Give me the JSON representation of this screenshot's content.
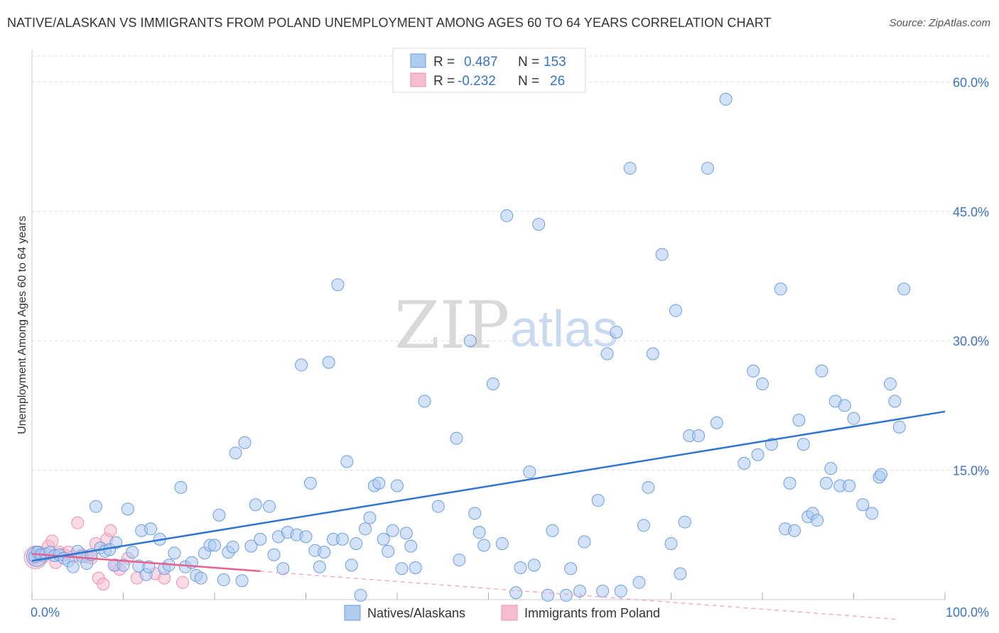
{
  "title": "NATIVE/ALASKAN VS IMMIGRANTS FROM POLAND UNEMPLOYMENT AMONG AGES 60 TO 64 YEARS CORRELATION CHART",
  "source": "Source: ZipAtlas.com",
  "watermark": {
    "zip": "ZIP",
    "atlas": "atlas"
  },
  "colors": {
    "blue_fill": "#aecbf0",
    "blue_stroke": "#6b9ee0",
    "blue_line": "#2f74d0",
    "pink_fill": "#f6bcd0",
    "pink_stroke": "#ec8fb0",
    "pink_line": "#e8608e",
    "axis_text": "#3b73c4",
    "grid": "#dddddd"
  },
  "stats": {
    "r_label": "R =",
    "n_label": "N =",
    "rows": [
      {
        "r": "0.487",
        "n": "153"
      },
      {
        "r": "-0.232",
        "n": "26"
      }
    ]
  },
  "chart_data": {
    "type": "scatter",
    "title": "NATIVE/ALASKAN VS IMMIGRANTS FROM POLAND UNEMPLOYMENT AMONG AGES 60 TO 64 YEARS CORRELATION CHART",
    "xlabel": "",
    "ylabel": "Unemployment Among Ages 60 to 64 years",
    "xlim": [
      0,
      100
    ],
    "ylim": [
      0,
      63
    ],
    "x_tick_labels": [
      "0.0%",
      "100.0%"
    ],
    "y_ticks": [
      15,
      30,
      45,
      60
    ],
    "y_tick_labels": [
      "15.0%",
      "30.0%",
      "45.0%",
      "60.0%"
    ],
    "grid": true,
    "legend": [
      "Natives/Alaskans",
      "Immigrants from Poland"
    ],
    "series": [
      {
        "name": "Natives/Alaskans",
        "r": 0.487,
        "n": 153,
        "trend": {
          "x": [
            0,
            100
          ],
          "y": [
            4.5,
            21.8
          ]
        },
        "points": [
          [
            0.3,
            5.0
          ],
          [
            0.6,
            5.5
          ],
          [
            1.0,
            5.2
          ],
          [
            1.5,
            5.3
          ],
          [
            2.0,
            5.5
          ],
          [
            2.5,
            5.1
          ],
          [
            3.0,
            5.2
          ],
          [
            3.5,
            4.8
          ],
          [
            4.0,
            4.5
          ],
          [
            4.5,
            3.8
          ],
          [
            5.0,
            5.6
          ],
          [
            5.5,
            5.0
          ],
          [
            6.0,
            4.2
          ],
          [
            6.5,
            5.2
          ],
          [
            7.0,
            10.8
          ],
          [
            7.5,
            6.0
          ],
          [
            8.0,
            5.6
          ],
          [
            8.5,
            5.8
          ],
          [
            9.0,
            4.0
          ],
          [
            9.2,
            6.6
          ],
          [
            10.0,
            4.0
          ],
          [
            10.5,
            10.5
          ],
          [
            11.0,
            5.5
          ],
          [
            11.7,
            3.9
          ],
          [
            12.0,
            8.0
          ],
          [
            12.5,
            2.9
          ],
          [
            12.8,
            3.8
          ],
          [
            13.0,
            8.2
          ],
          [
            14.0,
            7.0
          ],
          [
            14.5,
            3.6
          ],
          [
            15.0,
            4.0
          ],
          [
            15.6,
            5.4
          ],
          [
            16.3,
            13.0
          ],
          [
            16.8,
            3.8
          ],
          [
            17.5,
            4.3
          ],
          [
            18.0,
            2.8
          ],
          [
            18.5,
            2.5
          ],
          [
            18.9,
            5.4
          ],
          [
            19.5,
            6.3
          ],
          [
            20.0,
            6.3
          ],
          [
            20.5,
            9.8
          ],
          [
            21.0,
            2.3
          ],
          [
            21.5,
            5.5
          ],
          [
            22.0,
            6.1
          ],
          [
            22.3,
            17.0
          ],
          [
            23.0,
            2.2
          ],
          [
            23.3,
            18.2
          ],
          [
            24.0,
            6.2
          ],
          [
            24.5,
            11.0
          ],
          [
            25.0,
            7.0
          ],
          [
            26.0,
            10.8
          ],
          [
            26.5,
            5.2
          ],
          [
            27.0,
            7.3
          ],
          [
            27.5,
            3.6
          ],
          [
            28.0,
            7.8
          ],
          [
            29.0,
            7.5
          ],
          [
            29.5,
            27.2
          ],
          [
            30.0,
            7.3
          ],
          [
            30.5,
            13.5
          ],
          [
            31.0,
            5.7
          ],
          [
            31.5,
            3.8
          ],
          [
            32.0,
            5.5
          ],
          [
            32.5,
            27.5
          ],
          [
            33.0,
            7.0
          ],
          [
            33.5,
            36.5
          ],
          [
            34.0,
            7.0
          ],
          [
            34.5,
            16.0
          ],
          [
            35.0,
            4.0
          ],
          [
            35.5,
            6.5
          ],
          [
            36.0,
            0.5
          ],
          [
            36.5,
            8.2
          ],
          [
            37.0,
            9.5
          ],
          [
            37.5,
            13.2
          ],
          [
            38.0,
            13.5
          ],
          [
            38.5,
            7.0
          ],
          [
            39.0,
            5.6
          ],
          [
            39.5,
            8.0
          ],
          [
            40.0,
            13.2
          ],
          [
            40.5,
            3.6
          ],
          [
            41.0,
            7.7
          ],
          [
            41.5,
            6.2
          ],
          [
            42.0,
            3.7
          ],
          [
            43.0,
            23.0
          ],
          [
            44.5,
            10.8
          ],
          [
            46.5,
            18.7
          ],
          [
            46.8,
            4.6
          ],
          [
            48.0,
            30.0
          ],
          [
            48.5,
            10.0
          ],
          [
            49.0,
            7.8
          ],
          [
            49.5,
            6.3
          ],
          [
            50.5,
            25.0
          ],
          [
            51.5,
            6.5
          ],
          [
            52.0,
            44.5
          ],
          [
            53.0,
            0.8
          ],
          [
            53.5,
            3.7
          ],
          [
            54.5,
            14.8
          ],
          [
            55.0,
            4.0
          ],
          [
            55.5,
            43.5
          ],
          [
            56.5,
            0.5
          ],
          [
            57.0,
            8.0
          ],
          [
            58.5,
            0.5
          ],
          [
            59.0,
            3.6
          ],
          [
            60.0,
            1.0
          ],
          [
            60.5,
            6.7
          ],
          [
            62.0,
            11.5
          ],
          [
            62.5,
            1.0
          ],
          [
            63.0,
            28.5
          ],
          [
            64.0,
            31.0
          ],
          [
            64.5,
            1.0
          ],
          [
            65.5,
            50.0
          ],
          [
            66.5,
            2.0
          ],
          [
            67.0,
            8.6
          ],
          [
            67.5,
            13.0
          ],
          [
            68.0,
            28.5
          ],
          [
            69.0,
            40.0
          ],
          [
            70.0,
            6.5
          ],
          [
            70.5,
            33.5
          ],
          [
            71.0,
            3.0
          ],
          [
            71.5,
            9.0
          ],
          [
            72.0,
            19.0
          ],
          [
            73.0,
            19.0
          ],
          [
            74.0,
            50.0
          ],
          [
            75.0,
            20.5
          ],
          [
            76.0,
            58.0
          ],
          [
            78.0,
            15.8
          ],
          [
            79.0,
            26.5
          ],
          [
            79.5,
            16.8
          ],
          [
            80.0,
            25.0
          ],
          [
            81.0,
            18.0
          ],
          [
            82.0,
            36.0
          ],
          [
            82.5,
            8.2
          ],
          [
            83.0,
            13.5
          ],
          [
            83.5,
            8.0
          ],
          [
            84.0,
            20.8
          ],
          [
            84.5,
            18.0
          ],
          [
            85.0,
            9.6
          ],
          [
            85.5,
            10.0
          ],
          [
            86.0,
            9.2
          ],
          [
            86.5,
            26.5
          ],
          [
            87.0,
            13.5
          ],
          [
            87.5,
            15.2
          ],
          [
            88.0,
            23.0
          ],
          [
            88.5,
            13.2
          ],
          [
            89.0,
            22.5
          ],
          [
            89.5,
            13.2
          ],
          [
            90.0,
            21.0
          ],
          [
            91.0,
            11.0
          ],
          [
            92.0,
            10.0
          ],
          [
            92.8,
            14.2
          ],
          [
            93.0,
            14.5
          ],
          [
            94.0,
            25.0
          ],
          [
            94.5,
            23.0
          ],
          [
            95.0,
            20.0
          ],
          [
            95.5,
            36.0
          ]
        ]
      },
      {
        "name": "Immigrants from Poland",
        "r": -0.232,
        "n": 26,
        "trend": {
          "x": [
            0,
            25
          ],
          "y": [
            5.3,
            3.3
          ]
        },
        "trend_extension": {
          "x": [
            25,
            95
          ],
          "y": [
            3.3,
            -2.3
          ]
        },
        "points": [
          [
            0.3,
            4.8
          ],
          [
            0.8,
            5.5
          ],
          [
            1.3,
            5.0
          ],
          [
            1.8,
            6.2
          ],
          [
            2.2,
            6.8
          ],
          [
            2.6,
            4.3
          ],
          [
            3.0,
            5.5
          ],
          [
            3.5,
            5.2
          ],
          [
            4.0,
            5.5
          ],
          [
            4.5,
            5.0
          ],
          [
            5.0,
            8.9
          ],
          [
            5.5,
            5.2
          ],
          [
            6.0,
            5.0
          ],
          [
            6.5,
            4.8
          ],
          [
            7.0,
            6.5
          ],
          [
            7.3,
            2.5
          ],
          [
            7.8,
            1.8
          ],
          [
            8.2,
            7.0
          ],
          [
            8.6,
            8.0
          ],
          [
            9.2,
            4.0
          ],
          [
            9.6,
            3.5
          ],
          [
            10.5,
            4.8
          ],
          [
            11.5,
            2.5
          ],
          [
            13.5,
            3.0
          ],
          [
            14.5,
            2.5
          ],
          [
            16.5,
            2.0
          ]
        ]
      }
    ]
  }
}
